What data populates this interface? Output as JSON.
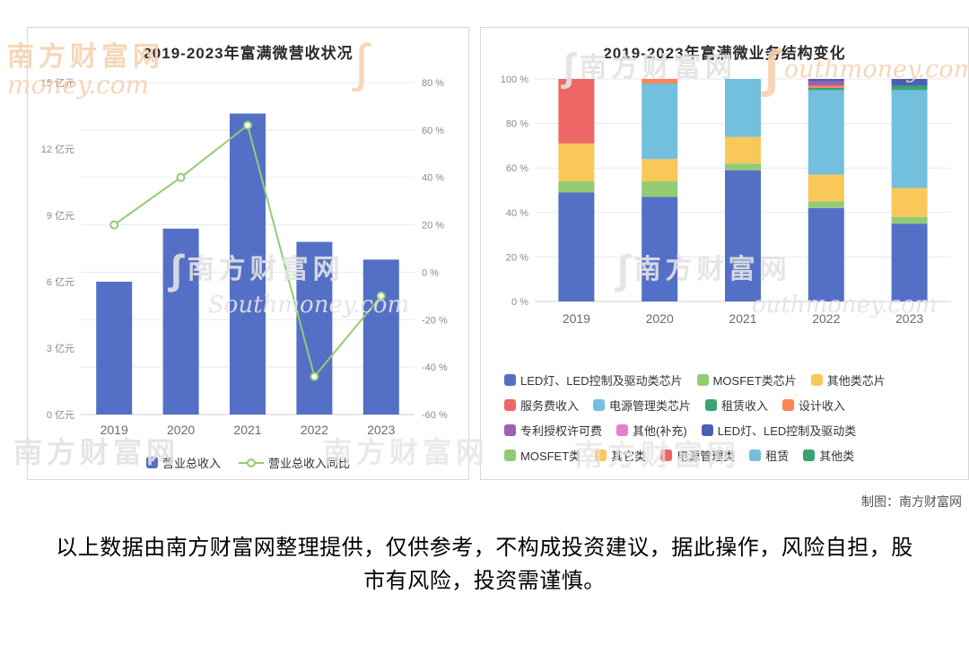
{
  "watermark": {
    "cn": "南方财富网",
    "en": "Southmoney.com",
    "en_partial": "outhmoney.com",
    "en_money": "money.com",
    "slash": "∫"
  },
  "footer": {
    "credit": "制图：南方财富网",
    "disclaimer": "以上数据由南方财富网整理提供，仅供参考，不构成投资建议，据此操作，风险自担，股市有风险，投资需谨慎。"
  },
  "chart_data": [
    {
      "type": "bar",
      "title": "2019-2023年富满微营收状况",
      "categories": [
        "2019",
        "2020",
        "2021",
        "2022",
        "2023"
      ],
      "series": [
        {
          "name": "营业总收入",
          "type": "bar",
          "unit": "亿元",
          "color": "#5470c6",
          "values": [
            6.0,
            8.4,
            13.6,
            7.8,
            7.0
          ]
        },
        {
          "name": "营业总收入同比",
          "type": "line",
          "unit": "%",
          "color": "#91cc75",
          "values": [
            20,
            40,
            62,
            -44,
            -10
          ]
        }
      ],
      "y_left": {
        "min": 0,
        "max": 15,
        "step": 3,
        "suffix": " 亿元"
      },
      "y_right": {
        "min": -60,
        "max": 80,
        "step": 20,
        "suffix": " %"
      },
      "grid": true,
      "legend_position": "bottom"
    },
    {
      "type": "bar",
      "subtype": "stacked-percent",
      "title": "2019-2023年富满微业务结构变化",
      "categories": [
        "2019",
        "2020",
        "2021",
        "2022",
        "2023"
      ],
      "y": {
        "min": 0,
        "max": 100,
        "step": 20,
        "suffix": " %"
      },
      "series": [
        {
          "name": "LED灯、LED控制及驱动类芯片",
          "color": "#5470c6",
          "values": [
            49,
            47,
            59,
            42,
            35
          ]
        },
        {
          "name": "MOSFET类芯片",
          "color": "#91cc75",
          "values": [
            5,
            7,
            3,
            3,
            3
          ]
        },
        {
          "name": "其他类芯片",
          "color": "#fac858",
          "values": [
            17,
            10,
            12,
            12,
            13
          ]
        },
        {
          "name": "电源管理类",
          "color": "#ee6666",
          "values": [
            29,
            0,
            0,
            0,
            0
          ]
        },
        {
          "name": "电源管理类芯片",
          "color": "#73c0de",
          "values": [
            0,
            34,
            26,
            38,
            44
          ]
        },
        {
          "name": "租赁收入",
          "color": "#3ba272",
          "values": [
            0,
            0,
            0,
            1,
            2
          ]
        },
        {
          "name": "设计收入",
          "color": "#fc8452",
          "values": [
            0,
            2,
            0,
            1,
            0
          ]
        },
        {
          "name": "专利授权许可费",
          "color": "#9a60b4",
          "values": [
            0,
            0,
            0,
            2,
            0
          ]
        },
        {
          "name": "LED灯、LED控制及驱动类",
          "color": "#4a5fb4",
          "values": [
            0,
            0,
            0,
            1,
            3
          ]
        }
      ],
      "legend": [
        {
          "label": "LED灯、LED控制及驱动类芯片",
          "color": "#5470c6"
        },
        {
          "label": "MOSFET类芯片",
          "color": "#91cc75"
        },
        {
          "label": "其他类芯片",
          "color": "#fac858"
        },
        {
          "label": "服务费收入",
          "color": "#ee6666"
        },
        {
          "label": "电源管理类芯片",
          "color": "#73c0de"
        },
        {
          "label": "租赁收入",
          "color": "#3ba272"
        },
        {
          "label": "设计收入",
          "color": "#fc8452"
        },
        {
          "label": "专利授权许可费",
          "color": "#9a60b4"
        },
        {
          "label": "其他(补充)",
          "color": "#ea7ccc"
        },
        {
          "label": "LED灯、LED控制及驱动类",
          "color": "#4a5fb4"
        },
        {
          "label": "MOSFET类",
          "color": "#91cc75"
        },
        {
          "label": "其它类",
          "color": "#fac858"
        },
        {
          "label": "电源管理类",
          "color": "#ee6666"
        },
        {
          "label": "租赁",
          "color": "#73c0de"
        },
        {
          "label": "其他类",
          "color": "#3ba272"
        }
      ],
      "legend_position": "bottom"
    }
  ]
}
